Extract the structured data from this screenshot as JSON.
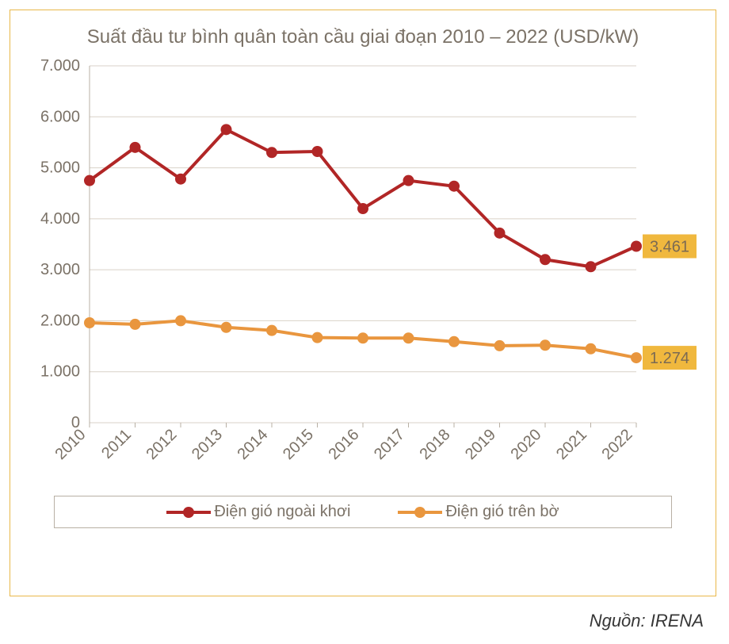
{
  "chart": {
    "type": "line",
    "title": "Suất đầu tư bình quân toàn cầu giai đoạn 2010 – 2022 (USD/kW)",
    "title_fontsize": 24,
    "title_color": "#7b7267",
    "background_color": "#ffffff",
    "frame_border_color": "#e9b84a",
    "grid_color": "#d9d2c8",
    "axis_color": "#b8b0a4",
    "tick_label_color": "#7b7267",
    "tick_label_fontsize": 20,
    "ylim": [
      0,
      7000
    ],
    "ytick_step": 1000,
    "ytick_labels": [
      "0",
      "1.000",
      "2.000",
      "3.000",
      "4.000",
      "5.000",
      "6.000",
      "7.000"
    ],
    "x_categories": [
      "2010",
      "2011",
      "2012",
      "2013",
      "2014",
      "2015",
      "2016",
      "2017",
      "2018",
      "2019",
      "2020",
      "2021",
      "2022"
    ],
    "x_tick_rotation_deg": -45,
    "series": [
      {
        "key": "offshore",
        "name": "Điện gió ngoài khơi",
        "color": "#b12626",
        "line_width": 4,
        "marker": "circle",
        "marker_size": 7,
        "values": [
          4750,
          5400,
          4780,
          5750,
          5300,
          5320,
          4200,
          4750,
          4640,
          3720,
          3200,
          3060,
          3461
        ],
        "end_label": "3.461",
        "end_label_bg": "#f0b83e",
        "end_label_color": "#7b6a53"
      },
      {
        "key": "onshore",
        "name": "Điện gió trên bờ",
        "color": "#e9963e",
        "line_width": 4,
        "marker": "circle",
        "marker_size": 7,
        "values": [
          1960,
          1930,
          2000,
          1870,
          1810,
          1670,
          1660,
          1660,
          1590,
          1510,
          1520,
          1450,
          1274
        ],
        "end_label": "1.274",
        "end_label_bg": "#f0b83e",
        "end_label_color": "#7b6a53"
      }
    ],
    "legend": {
      "border_color": "#b8b0a4",
      "font_color": "#7b7267",
      "font_size": 20
    }
  },
  "source": {
    "label": "Nguồn: IRENA"
  }
}
